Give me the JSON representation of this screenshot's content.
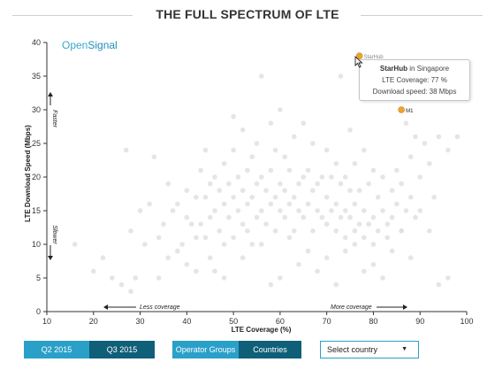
{
  "title": "THE FULL SPECTRUM OF LTE",
  "brand": {
    "part1": "Open",
    "part2": "Signal"
  },
  "colors": {
    "accent": "#2aa0c9",
    "accent_dark": "#0f5f78",
    "highlight": "#e8a531",
    "dot": "#dedede"
  },
  "chart_data": {
    "type": "scatter",
    "xlabel": "LTE Coverage (%)",
    "ylabel": "LTE Download Speed (Mbps)",
    "xlim": [
      10,
      100
    ],
    "ylim": [
      0,
      40
    ],
    "x_ticks": [
      10,
      20,
      30,
      40,
      50,
      60,
      70,
      80,
      90,
      100
    ],
    "y_ticks": [
      0,
      5,
      10,
      15,
      20,
      25,
      30,
      35,
      40
    ],
    "grid": false,
    "annotations": {
      "faster": "Faster",
      "slower": "Slower",
      "less_coverage": "Less coverage",
      "more_coverage": "More coverage"
    },
    "highlighted": [
      {
        "name": "StarHub",
        "x": 77,
        "y": 38
      },
      {
        "name": "M1",
        "x": 86,
        "y": 30
      }
    ],
    "background_points": [
      [
        12,
        12
      ],
      [
        16,
        10
      ],
      [
        20,
        6
      ],
      [
        22,
        8
      ],
      [
        24,
        5
      ],
      [
        26,
        4
      ],
      [
        27,
        24
      ],
      [
        28,
        12
      ],
      [
        29,
        5
      ],
      [
        30,
        15
      ],
      [
        31,
        10
      ],
      [
        32,
        16
      ],
      [
        33,
        23
      ],
      [
        34,
        11
      ],
      [
        35,
        13
      ],
      [
        36,
        8
      ],
      [
        36,
        19
      ],
      [
        37,
        15
      ],
      [
        38,
        9
      ],
      [
        38,
        16
      ],
      [
        39,
        10
      ],
      [
        40,
        7
      ],
      [
        40,
        14
      ],
      [
        40,
        18
      ],
      [
        41,
        13
      ],
      [
        42,
        11
      ],
      [
        42,
        17
      ],
      [
        43,
        13
      ],
      [
        43,
        21
      ],
      [
        44,
        11
      ],
      [
        44,
        17
      ],
      [
        45,
        8
      ],
      [
        45,
        14
      ],
      [
        45,
        19
      ],
      [
        46,
        15
      ],
      [
        46,
        20
      ],
      [
        47,
        12
      ],
      [
        47,
        18
      ],
      [
        48,
        10
      ],
      [
        48,
        16
      ],
      [
        48,
        22
      ],
      [
        49,
        14
      ],
      [
        49,
        19
      ],
      [
        50,
        11
      ],
      [
        50,
        17
      ],
      [
        50,
        24
      ],
      [
        51,
        15
      ],
      [
        51,
        20
      ],
      [
        52,
        13
      ],
      [
        52,
        18
      ],
      [
        52,
        27
      ],
      [
        53,
        12
      ],
      [
        53,
        16
      ],
      [
        53,
        21
      ],
      [
        54,
        10
      ],
      [
        54,
        17
      ],
      [
        54,
        23
      ],
      [
        55,
        14
      ],
      [
        55,
        19
      ],
      [
        55,
        25
      ],
      [
        56,
        15
      ],
      [
        56,
        20
      ],
      [
        56,
        35
      ],
      [
        57,
        13
      ],
      [
        57,
        18
      ],
      [
        58,
        16
      ],
      [
        58,
        21
      ],
      [
        58,
        28
      ],
      [
        59,
        12
      ],
      [
        59,
        17
      ],
      [
        59,
        24
      ],
      [
        60,
        15
      ],
      [
        60,
        19
      ],
      [
        60,
        30
      ],
      [
        61,
        14
      ],
      [
        61,
        18
      ],
      [
        61,
        23
      ],
      [
        62,
        16
      ],
      [
        62,
        21
      ],
      [
        63,
        12
      ],
      [
        63,
        17
      ],
      [
        63,
        26
      ],
      [
        64,
        15
      ],
      [
        64,
        19
      ],
      [
        65,
        14
      ],
      [
        65,
        20
      ],
      [
        65,
        28
      ],
      [
        66,
        16
      ],
      [
        66,
        21
      ],
      [
        67,
        12
      ],
      [
        67,
        18
      ],
      [
        67,
        25
      ],
      [
        68,
        15
      ],
      [
        68,
        19
      ],
      [
        69,
        14
      ],
      [
        69,
        20
      ],
      [
        70,
        13
      ],
      [
        70,
        17
      ],
      [
        70,
        24
      ],
      [
        71,
        15
      ],
      [
        71,
        20
      ],
      [
        72,
        12
      ],
      [
        72,
        16
      ],
      [
        72,
        22
      ],
      [
        73,
        14
      ],
      [
        73,
        19
      ],
      [
        73,
        35
      ],
      [
        74,
        11
      ],
      [
        74,
        15
      ],
      [
        74,
        20
      ],
      [
        75,
        14
      ],
      [
        75,
        18
      ],
      [
        75,
        27
      ],
      [
        76,
        12
      ],
      [
        76,
        16
      ],
      [
        76,
        22
      ],
      [
        77,
        13
      ],
      [
        77,
        18
      ],
      [
        78,
        11
      ],
      [
        78,
        15
      ],
      [
        78,
        24
      ],
      [
        79,
        13
      ],
      [
        79,
        19
      ],
      [
        80,
        10
      ],
      [
        80,
        14
      ],
      [
        80,
        21
      ],
      [
        81,
        12
      ],
      [
        81,
        17
      ],
      [
        82,
        15
      ],
      [
        82,
        20
      ],
      [
        83,
        11
      ],
      [
        83,
        13
      ],
      [
        84,
        14
      ],
      [
        84,
        18
      ],
      [
        85,
        16
      ],
      [
        85,
        21
      ],
      [
        86,
        12
      ],
      [
        86,
        19
      ],
      [
        87,
        15
      ],
      [
        87,
        28
      ],
      [
        88,
        17
      ],
      [
        88,
        23
      ],
      [
        89,
        14
      ],
      [
        89,
        26
      ],
      [
        90,
        20
      ],
      [
        91,
        25
      ],
      [
        92,
        22
      ],
      [
        93,
        17
      ],
      [
        94,
        26
      ],
      [
        96,
        5
      ],
      [
        98,
        26
      ],
      [
        58,
        4
      ],
      [
        64,
        7
      ],
      [
        52,
        8
      ],
      [
        46,
        6
      ],
      [
        74,
        9
      ],
      [
        80,
        7
      ],
      [
        88,
        8
      ],
      [
        92,
        12
      ],
      [
        66,
        9
      ],
      [
        70,
        8
      ],
      [
        56,
        10
      ],
      [
        62,
        11
      ],
      [
        76,
        10
      ],
      [
        84,
        9
      ],
      [
        90,
        15
      ],
      [
        44,
        24
      ],
      [
        50,
        29
      ],
      [
        96,
        24
      ],
      [
        86,
        12
      ],
      [
        42,
        6
      ],
      [
        48,
        5
      ],
      [
        60,
        5
      ],
      [
        68,
        6
      ],
      [
        78,
        6
      ],
      [
        28,
        3
      ],
      [
        34,
        5
      ],
      [
        72,
        4
      ],
      [
        82,
        5
      ],
      [
        94,
        4
      ]
    ]
  },
  "tooltip": {
    "operator": "StarHub",
    "in_word": " in ",
    "country": "Singapore",
    "coverage": "LTE Coverage: 77 %",
    "speed": "Download speed: 38 Mbps"
  },
  "controls": {
    "q2": "Q2 2015",
    "q3": "Q3 2015",
    "operator_groups": "Operator Groups",
    "countries": "Countries",
    "select_country": "Select country"
  }
}
